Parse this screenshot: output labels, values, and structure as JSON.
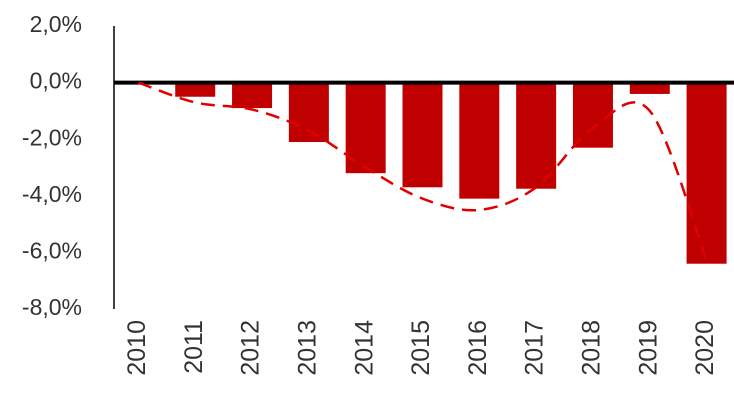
{
  "chart_data": {
    "type": "bar",
    "categories": [
      "2010",
      "2011",
      "2012",
      "2013",
      "2014",
      "2015",
      "2016",
      "2017",
      "2018",
      "2019",
      "2020"
    ],
    "series": [
      {
        "type": "bar",
        "color": "#c00000",
        "values": [
          0,
          -0.5,
          -0.9,
          -2.1,
          -3.2,
          -3.7,
          -4.1,
          -3.75,
          -2.3,
          -0.4,
          -6.4
        ]
      },
      {
        "type": "line",
        "color": "#e00000",
        "dashed": true,
        "smooth": true,
        "values": [
          0,
          -0.7,
          -0.95,
          -1.7,
          -3.0,
          -4.1,
          -4.5,
          -3.7,
          -1.6,
          -1.0,
          -6.3
        ]
      }
    ],
    "ylim": [
      -8,
      2
    ],
    "yticks": [
      {
        "value": 2,
        "label": "2,0%"
      },
      {
        "value": 0,
        "label": "0,0%"
      },
      {
        "value": -2,
        "label": "-2,0%"
      },
      {
        "value": -4,
        "label": "-4,0%"
      },
      {
        "value": -6,
        "label": "-6,0%"
      },
      {
        "value": -8,
        "label": "-8,0%"
      }
    ],
    "grid": false
  }
}
